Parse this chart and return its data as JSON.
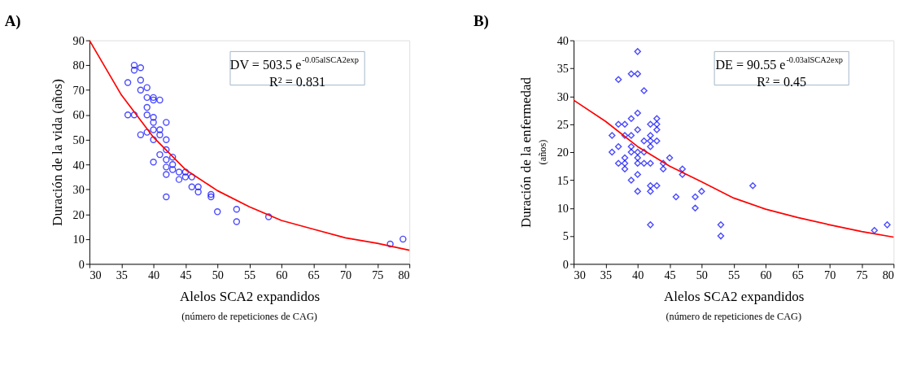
{
  "chart_data": [
    {
      "type": "scatter",
      "title": "A)",
      "xlabel": "Alelos SCA2 expandidos\n(número de repeticiones de CAG)",
      "ylabel": "Duración de la vida (años)",
      "xlim": [
        30,
        80
      ],
      "xticks": [
        30,
        35,
        40,
        45,
        50,
        55,
        60,
        65,
        70,
        75,
        80
      ],
      "ylim": [
        0,
        90
      ],
      "yticks": [
        0,
        10,
        20,
        30,
        40,
        50,
        60,
        70,
        80,
        90
      ],
      "grid": false,
      "annotations": [
        "DV = 503.5 e$^{-0.05alSCA2exp}$",
        "R² = 0.831"
      ],
      "series": [
        {
          "type": "scatter",
          "marker": "circle",
          "color": "#0000ff",
          "x": [
            36,
            36,
            37,
            37,
            37,
            38,
            38,
            38,
            38,
            39,
            39,
            39,
            39,
            39,
            40,
            40,
            40,
            40,
            40,
            40,
            40,
            41,
            41,
            41,
            41,
            42,
            42,
            42,
            42,
            42,
            42,
            42,
            43,
            43,
            43,
            44,
            44,
            45,
            45,
            46,
            46,
            47,
            47,
            49,
            49,
            50,
            53,
            53,
            58,
            77,
            79
          ],
          "values": [
            73,
            60,
            80,
            78,
            60,
            79,
            74,
            70,
            52,
            71,
            67,
            63,
            60,
            53,
            67,
            66,
            59,
            57,
            54,
            50,
            41,
            66,
            54,
            52,
            44,
            57,
            50,
            46,
            42,
            39,
            36,
            27,
            43,
            40,
            38,
            37,
            34,
            37,
            35,
            35,
            31,
            31,
            29,
            28,
            27,
            21,
            22,
            17,
            19,
            8,
            10
          ]
        },
        {
          "type": "line",
          "marker": "none",
          "line_style": "solid",
          "color": "#ff0000",
          "x": [
            30,
            35,
            40,
            45,
            50,
            55,
            60,
            65,
            70,
            75,
            80
          ],
          "values": [
            90,
            68,
            51,
            38,
            29.5,
            23,
            17.5,
            14,
            10.5,
            8.3,
            5.5
          ]
        }
      ]
    },
    {
      "type": "scatter",
      "title": "B)",
      "xlabel": "Alelos SCA2 expandidos\n(número de repeticiones de CAG)",
      "ylabel": "Duración de la enfermedad\n(años)",
      "xlim": [
        30,
        80
      ],
      "xticks": [
        30,
        35,
        40,
        45,
        50,
        55,
        60,
        65,
        70,
        75,
        80
      ],
      "ylim": [
        0,
        40
      ],
      "yticks": [
        0,
        5,
        10,
        15,
        20,
        25,
        30,
        35,
        40
      ],
      "grid": false,
      "annotations": [
        "DE = 90.55 e$^{-0.03alSCA2exp}$",
        "R² = 0.45"
      ],
      "series": [
        {
          "type": "scatter",
          "marker": "diamond",
          "color": "#0000ff",
          "x": [
            36,
            36,
            37,
            37,
            37,
            37,
            38,
            38,
            38,
            38,
            38,
            39,
            39,
            39,
            39,
            39,
            39,
            40,
            40,
            40,
            40,
            40,
            40,
            40,
            40,
            40,
            41,
            41,
            41,
            41,
            42,
            42,
            42,
            42,
            42,
            42,
            42,
            42,
            43,
            43,
            43,
            43,
            43,
            44,
            44,
            45,
            46,
            47,
            47,
            49,
            49,
            50,
            53,
            53,
            58,
            77,
            79
          ],
          "values": [
            23,
            20,
            33,
            25,
            21,
            18,
            25,
            23,
            19,
            18,
            17,
            34,
            26,
            23,
            21,
            20,
            15,
            38,
            34,
            27,
            24,
            20,
            19,
            18,
            16,
            13,
            31,
            22,
            20,
            18,
            25,
            23,
            22,
            21,
            18,
            14,
            13,
            7,
            26,
            25,
            24,
            22,
            14,
            18,
            17,
            19,
            12,
            17,
            16,
            12,
            10,
            13,
            7,
            5,
            14,
            6,
            7
          ]
        },
        {
          "type": "line",
          "marker": "none",
          "line_style": "solid",
          "color": "#ff0000",
          "x": [
            30,
            35,
            40,
            45,
            50,
            55,
            60,
            65,
            70,
            75,
            80
          ],
          "values": [
            29.3,
            25.5,
            21,
            17.5,
            14.7,
            11.8,
            9.8,
            8.3,
            7,
            5.8,
            4.8
          ]
        }
      ]
    }
  ]
}
